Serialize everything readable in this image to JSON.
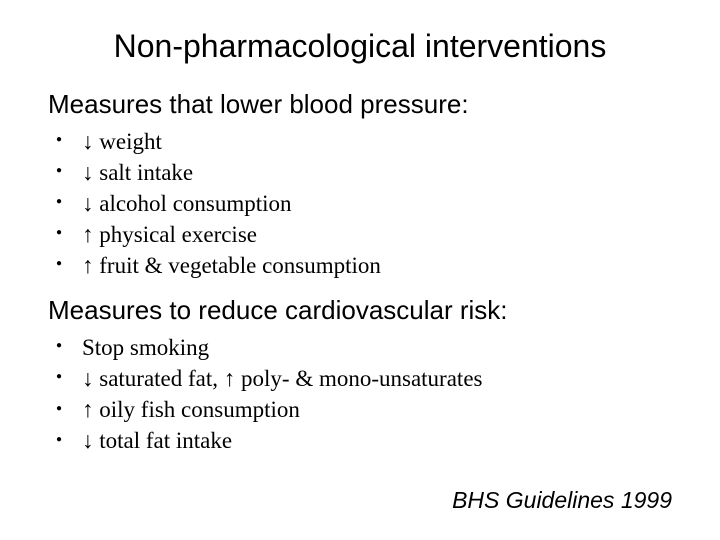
{
  "title": "Non-pharmacological interventions",
  "section1": {
    "heading": "Measures that lower blood pressure:",
    "items": [
      "↓ weight",
      "↓ salt intake",
      "↓ alcohol consumption",
      "↑ physical exercise",
      "↑ fruit & vegetable consumption"
    ]
  },
  "section2": {
    "heading": "Measures to reduce cardiovascular risk:",
    "items": [
      "Stop smoking",
      "↓ saturated fat, ↑ poly- & mono-unsaturates",
      "↑ oily fish consumption",
      "↓ total fat intake"
    ]
  },
  "citation": "BHS Guidelines 1999",
  "colors": {
    "background": "#ffffff",
    "text": "#000000"
  },
  "typography": {
    "title_fontsize": 32,
    "heading_fontsize": 26,
    "body_fontsize": 23,
    "citation_fontsize": 23,
    "font_family": "Arial"
  }
}
